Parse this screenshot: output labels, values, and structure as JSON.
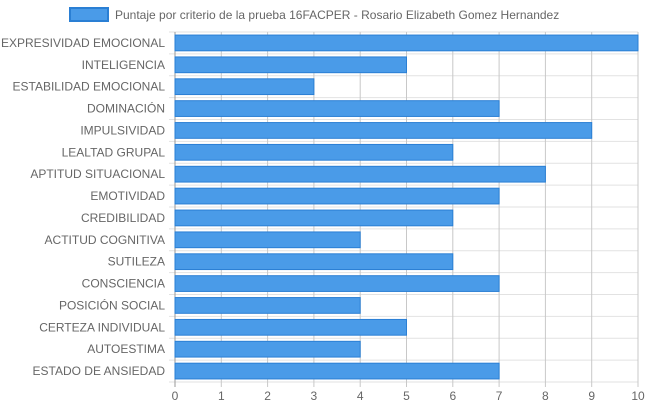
{
  "chart_data": {
    "type": "bar",
    "orientation": "horizontal",
    "categories": [
      "EXPRESIVIDAD EMOCIONAL",
      "INTELIGENCIA",
      "ESTABILIDAD EMOCIONAL",
      "DOMINACIÓN",
      "IMPULSIVIDAD",
      "LEALTAD GRUPAL",
      "APTITUD SITUACIONAL",
      "EMOTIVIDAD",
      "CREDIBILIDAD",
      "ACTITUD COGNITIVA",
      "SUTILEZA",
      "CONSCIENCIA",
      "POSICIÓN SOCIAL",
      "CERTEZA INDIVIDUAL",
      "AUTOESTIMA",
      "ESTADO DE ANSIEDAD"
    ],
    "series": [
      {
        "name": "Puntaje por criterio de la prueba 16FACPER - Rosario Elizabeth Gomez Hernandez",
        "values": [
          10,
          5,
          3,
          7,
          9,
          6,
          8,
          7,
          6,
          4,
          6,
          7,
          4,
          5,
          4,
          7
        ],
        "color": "#4a9be8",
        "border_color": "#2a7fd4"
      }
    ],
    "xlim": [
      0,
      10
    ],
    "xticks": [
      "0",
      "1",
      "2",
      "3",
      "4",
      "5",
      "6",
      "7",
      "8",
      "9",
      "10"
    ],
    "grid": true,
    "legend_position": "top"
  }
}
